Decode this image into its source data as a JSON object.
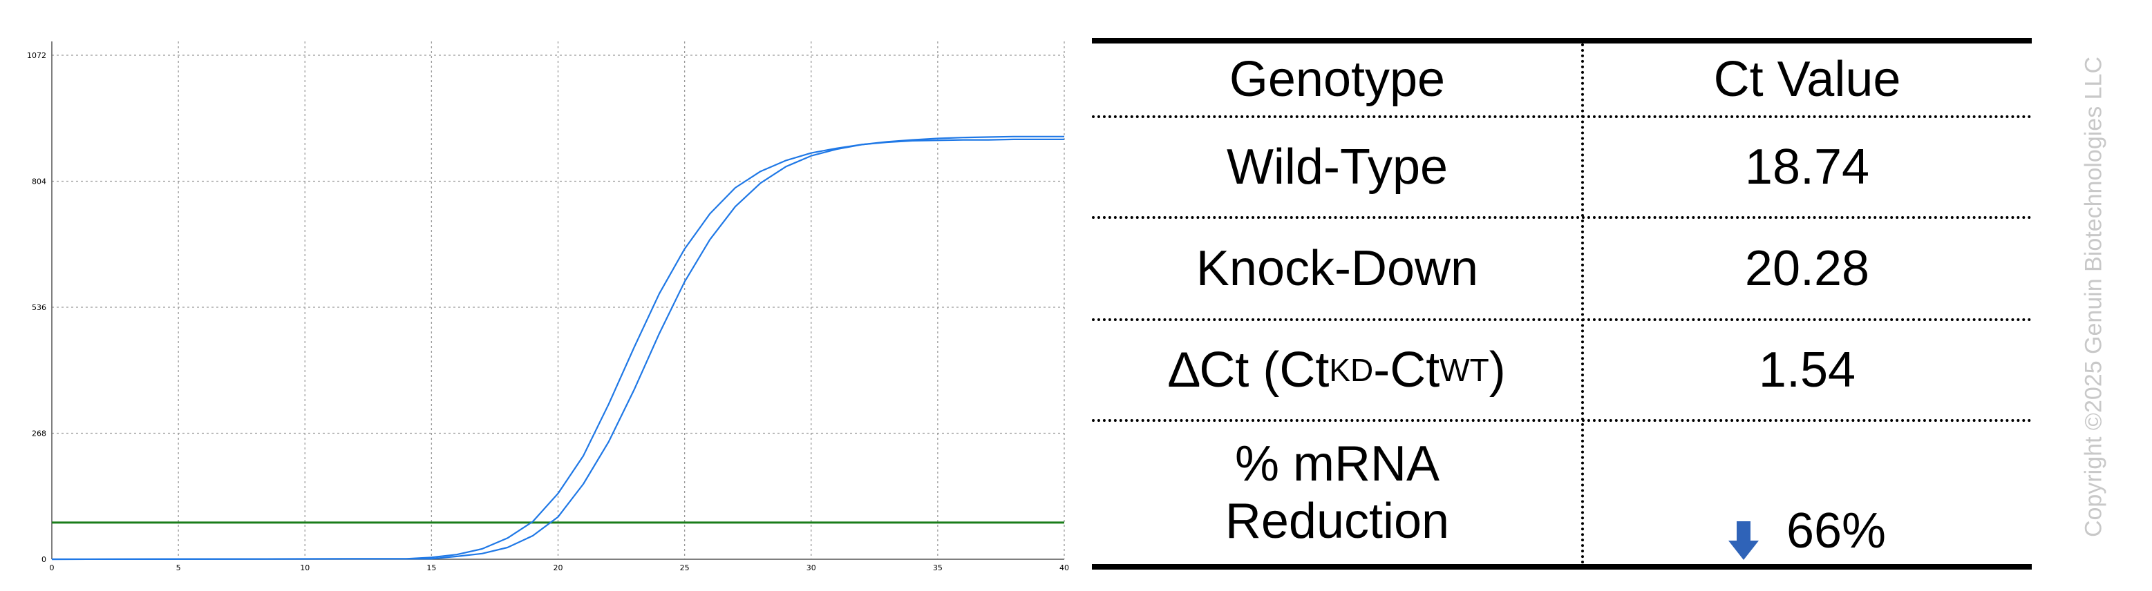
{
  "chart_data": {
    "type": "line",
    "x_ticks": [
      0,
      5,
      10,
      15,
      20,
      25,
      30,
      35,
      40
    ],
    "y_ticks": [
      0,
      268,
      536,
      804,
      1072
    ],
    "xlim": [
      0,
      40
    ],
    "ylim": [
      0,
      1072
    ],
    "grid": true,
    "threshold": 78,
    "series": [
      {
        "x": [
          0,
          14,
          15,
          16,
          17,
          18,
          19,
          20,
          21,
          22,
          23,
          24,
          25,
          26,
          27,
          28,
          29,
          30,
          31,
          32,
          33,
          34,
          35,
          36,
          37,
          38,
          39,
          40
        ],
        "values": [
          0,
          1,
          4,
          10,
          22,
          45,
          80,
          140,
          220,
          330,
          450,
          565,
          660,
          735,
          790,
          825,
          848,
          864,
          874,
          882,
          887,
          890,
          891,
          892,
          892,
          893,
          893,
          893
        ]
      },
      {
        "x": [
          0,
          15,
          16,
          17,
          18,
          19,
          20,
          21,
          22,
          23,
          24,
          25,
          26,
          27,
          28,
          29,
          30,
          31,
          32,
          33,
          34,
          35,
          36,
          37,
          38,
          39,
          40
        ],
        "values": [
          0,
          1,
          6,
          12,
          25,
          50,
          90,
          160,
          250,
          360,
          480,
          590,
          680,
          750,
          800,
          835,
          858,
          872,
          882,
          888,
          892,
          895,
          897,
          898,
          899,
          899,
          899
        ]
      }
    ],
    "colors": {
      "curves": "#1f78e6",
      "threshold": "#1a7d1a",
      "grid": "#9a9a9a"
    }
  },
  "table": {
    "headers": [
      "Genotype",
      "Ct Value"
    ],
    "rows": [
      {
        "label": "Wild-Type",
        "value": "18.74"
      },
      {
        "label": "Knock-Down",
        "value": "20.28"
      }
    ],
    "delta_ct": {
      "delta": "∆",
      "prefix": "Ct (Ct",
      "sub_kd": "KD",
      "middle": "-Ct",
      "sub_wt": "WT",
      "suffix": ")",
      "value": "1.54"
    },
    "reduction": {
      "label_line1": "% mRNA",
      "label_line2": "Reduction",
      "value": "66%",
      "arrow_icon": "down-arrow-icon",
      "arrow_color": "#2f63b8"
    }
  },
  "copyright": "Copyright ©2025 Genuin Biotechnologies LLC"
}
